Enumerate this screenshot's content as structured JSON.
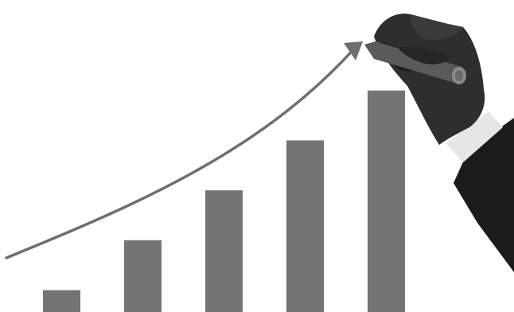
{
  "illustration": {
    "bar_relative_heights": [
      0.07,
      0.23,
      0.39,
      0.55,
      0.71
    ],
    "colors": {
      "background": "#ffffff",
      "bar": "#747474",
      "trend_arrow": "#6e6e6e",
      "hand": "#2e2e2e",
      "hand_shadow": "#1c1c1c",
      "pen": "#5a5a5a",
      "cuff": "#e6e6e6",
      "sleeve": "#1b1b1b"
    },
    "icons": [
      "trend-arrow-icon",
      "hand-with-pen-icon"
    ]
  }
}
